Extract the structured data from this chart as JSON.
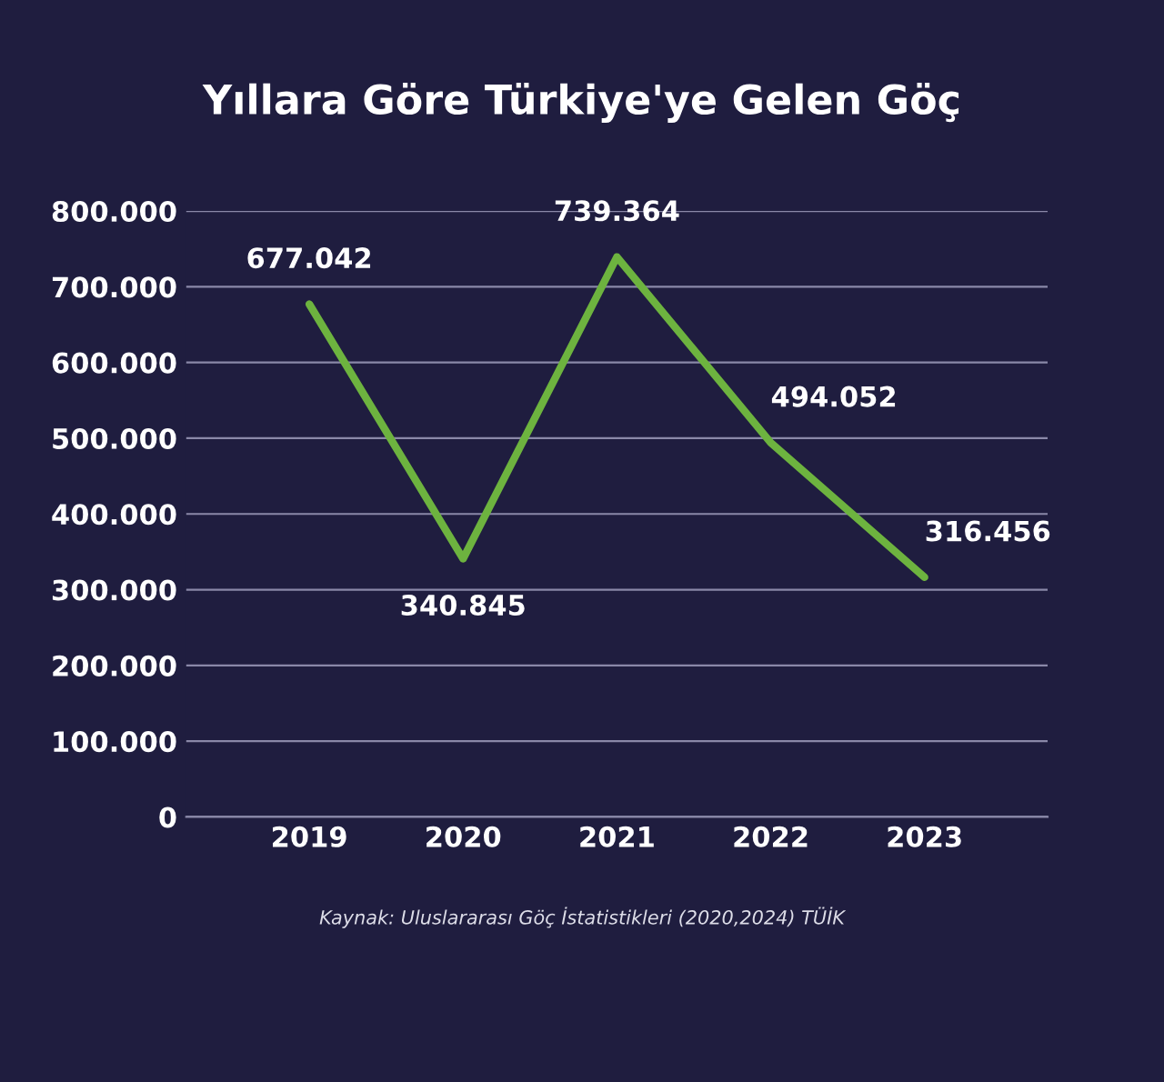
{
  "chart_data": {
    "type": "line",
    "title": "Yıllara Göre Türkiye'ye Gelen Göç",
    "categories": [
      "2019",
      "2020",
      "2021",
      "2022",
      "2023"
    ],
    "series": [
      {
        "color": "#6db33f",
        "values": [
          677042,
          340845,
          739364,
          494052,
          316456
        ],
        "value_labels": [
          "677.042",
          "340.845",
          "739.364",
          "494.052",
          "316.456"
        ]
      }
    ],
    "ylim": [
      0,
      800000
    ],
    "yticks": [
      {
        "value": 0,
        "label": "0"
      },
      {
        "value": 100000,
        "label": "100.000"
      },
      {
        "value": 200000,
        "label": "200.000"
      },
      {
        "value": 300000,
        "label": "300.000"
      },
      {
        "value": 400000,
        "label": "400.000"
      },
      {
        "value": 500000,
        "label": "500.000"
      },
      {
        "value": 600000,
        "label": "600.000"
      },
      {
        "value": 700000,
        "label": "700.000"
      },
      {
        "value": 800000,
        "label": "800.000"
      }
    ],
    "grid": "y",
    "marker": "none",
    "line_style": "solid",
    "legend": false,
    "annotations": [
      "Kaynak: Uluslararası Göç İstatistikleri (2020,2024) TÜİK"
    ]
  }
}
